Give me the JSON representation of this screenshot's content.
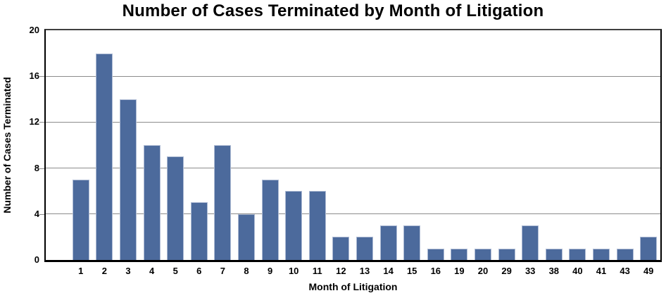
{
  "chart_data": {
    "type": "bar",
    "title": "Number of Cases Terminated by Month of Litigation",
    "xlabel": "Month of Litigation",
    "ylabel": "Number of Cases Terminated",
    "categories": [
      "1",
      "2",
      "3",
      "4",
      "5",
      "6",
      "7",
      "8",
      "9",
      "10",
      "11",
      "12",
      "13",
      "14",
      "15",
      "16",
      "19",
      "20",
      "29",
      "33",
      "38",
      "40",
      "41",
      "43",
      "49"
    ],
    "values": [
      7,
      18,
      14,
      10,
      9,
      5,
      10,
      4,
      7,
      6,
      6,
      2,
      2,
      3,
      3,
      1,
      1,
      1,
      1,
      3,
      1,
      1,
      1,
      1,
      2
    ],
    "ylim": [
      0,
      20
    ],
    "yticks": [
      0,
      4,
      8,
      12,
      16,
      20
    ],
    "grid": "horizontal-gridlines-at-yticks",
    "legend": "none",
    "colors": {
      "bar_fill": "#4C6A9C",
      "bar_border": "#AEBBD4",
      "gridline": "#8C8C8C",
      "axis": "#000000",
      "text": "#000000",
      "background": "#FFFFFF"
    }
  }
}
